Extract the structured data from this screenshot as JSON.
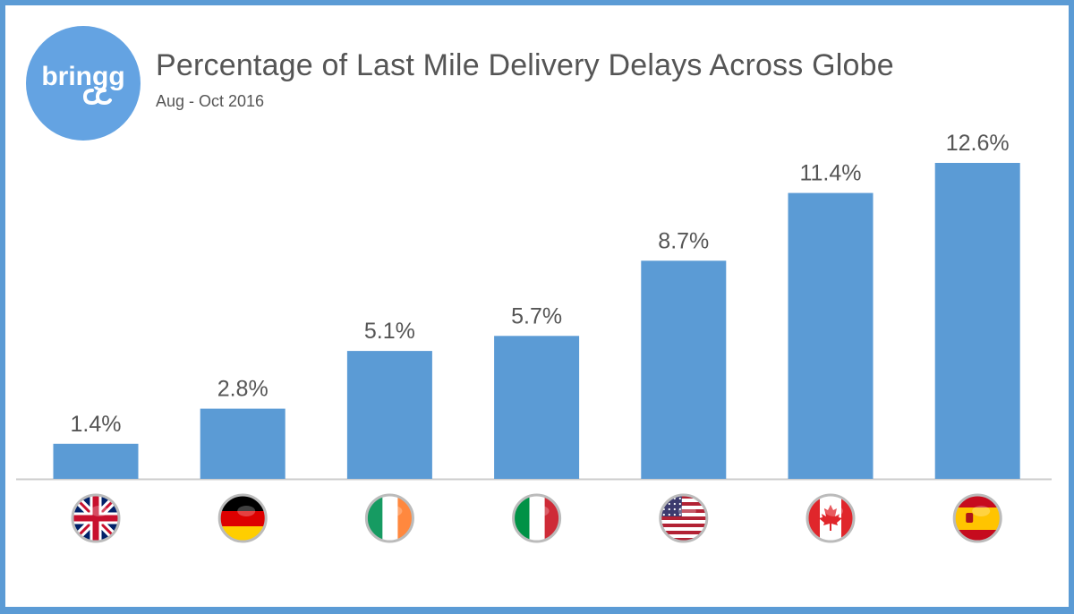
{
  "brand": {
    "logo_text": "bringg"
  },
  "header": {
    "title": "Percentage of Last Mile Delivery Delays Across Globe",
    "subtitle": "Aug - Oct 2016"
  },
  "colors": {
    "bar": "#5b9bd5",
    "frame": "#5b9bd5",
    "label": "#555555",
    "axis": "#cccccc"
  },
  "chart_data": {
    "type": "bar",
    "title": "Percentage of Last Mile Delivery Delays Across Globe",
    "subtitle": "Aug - Oct 2016",
    "xlabel": "",
    "ylabel": "",
    "categories": [
      "United Kingdom",
      "Germany",
      "Ireland",
      "Italy",
      "United States",
      "Canada",
      "Spain"
    ],
    "category_icons": [
      "uk-flag-icon",
      "germany-flag-icon",
      "ireland-flag-icon",
      "italy-flag-icon",
      "usa-flag-icon",
      "canada-flag-icon",
      "spain-flag-icon"
    ],
    "values": [
      1.4,
      2.8,
      5.1,
      5.7,
      8.7,
      11.4,
      12.6
    ],
    "data_labels": [
      "1.4%",
      "2.8%",
      "5.1%",
      "5.7%",
      "8.7%",
      "11.4%",
      "12.6%"
    ],
    "ylim": [
      0,
      12.6
    ],
    "grid": false,
    "legend": "none"
  }
}
